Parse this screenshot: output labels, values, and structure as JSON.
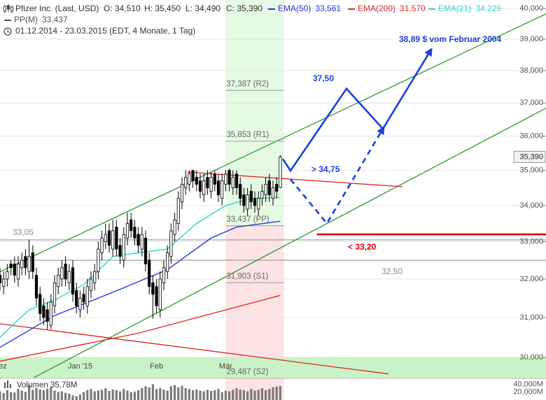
{
  "chart_data": {
    "type": "candlestick",
    "title": "Pfizer Inc. (Last, USD)",
    "ohlc_labels": [
      "O: 34,510",
      "H: 35,450",
      "L: 34,490",
      "C: 35,390"
    ],
    "subtitle": "01.12.2014 - 23.03.2015 (EDT, 4 Monate, 1 Tag)",
    "log_scale": true,
    "grid": true,
    "xlim": [
      0,
      150
    ],
    "xticks": [
      {
        "value": 0,
        "label": "Dez"
      },
      {
        "value": 22,
        "label": "Jan '15"
      },
      {
        "value": 43,
        "label": "Feb"
      },
      {
        "value": 62,
        "label": "Mär"
      }
    ],
    "ylim": [
      29.5,
      40.28
    ],
    "yticks": [
      {
        "value": 30,
        "label": "30,000"
      },
      {
        "value": 31,
        "label": "31,000"
      },
      {
        "value": 32,
        "label": "32,000"
      },
      {
        "value": 33,
        "label": "33,000"
      },
      {
        "value": 34,
        "label": "34,000"
      },
      {
        "value": 35,
        "label": "35,000"
      },
      {
        "value": 36,
        "label": "36,000"
      },
      {
        "value": 37,
        "label": "37,000"
      },
      {
        "value": 38,
        "label": "38,000"
      },
      {
        "value": 39,
        "label": "39,000"
      },
      {
        "value": 40,
        "label": "40,000"
      }
    ],
    "x": [
      0,
      1,
      2,
      3,
      4,
      5,
      6,
      7,
      8,
      9,
      10,
      11,
      12,
      13,
      14,
      15,
      16,
      17,
      18,
      19,
      20,
      21,
      22,
      23,
      24,
      25,
      26,
      27,
      28,
      29,
      30,
      31,
      32,
      33,
      34,
      35,
      36,
      37,
      38,
      39,
      40,
      41,
      42,
      43,
      44,
      45,
      46,
      47,
      48,
      49,
      50,
      51,
      52,
      53,
      54,
      55,
      56,
      57,
      58,
      59,
      60,
      61,
      62,
      63,
      64,
      65,
      66,
      67,
      68,
      69,
      70,
      71,
      72,
      73,
      74,
      75,
      76,
      77
    ],
    "open": [
      32.1,
      31.8,
      32.0,
      32.4,
      32.4,
      32.0,
      32.3,
      32.6,
      32.2,
      32.7,
      32.1,
      31.6,
      31.3,
      31.2,
      30.8,
      31.3,
      31.8,
      32.0,
      32.4,
      31.9,
      32.3,
      31.7,
      31.2,
      31.6,
      31.3,
      31.7,
      31.9,
      32.2,
      32.7,
      33.0,
      33.3,
      32.8,
      33.4,
      32.9,
      32.5,
      33.1,
      33.6,
      33.4,
      33.2,
      32.8,
      33.1,
      32.5,
      31.9,
      31.8,
      31.2,
      31.9,
      32.2,
      32.6,
      33.2,
      33.5,
      34.1,
      34.5,
      34.6,
      35.0,
      34.8,
      34.7,
      34.3,
      34.8,
      34.4,
      34.9,
      34.7,
      34.2,
      34.6,
      35.0,
      34.5,
      34.9,
      34.6,
      34.3,
      33.9,
      34.4,
      34.2,
      33.9,
      34.2,
      34.3,
      34.7,
      34.2,
      34.6,
      34.51
    ],
    "high": [
      32.3,
      32.2,
      32.4,
      32.5,
      32.6,
      32.6,
      32.7,
      32.8,
      33.05,
      32.9,
      32.3,
      31.8,
      31.5,
      31.4,
      31.6,
      32.1,
      32.3,
      32.5,
      32.6,
      32.4,
      32.5,
      31.9,
      31.7,
      31.8,
      32.0,
      32.2,
      32.4,
      33.0,
      33.3,
      33.5,
      33.5,
      33.6,
      33.6,
      33.1,
      33.4,
      33.8,
      33.8,
      33.6,
      33.4,
      33.4,
      33.3,
      32.7,
      32.1,
      32.0,
      32.2,
      32.5,
      32.9,
      33.5,
      33.8,
      34.4,
      34.8,
      35.0,
      35.0,
      35.0,
      35.0,
      34.9,
      34.9,
      35.0,
      34.95,
      35.0,
      34.9,
      34.9,
      35.0,
      35.05,
      35.0,
      35.0,
      34.8,
      34.5,
      34.5,
      34.6,
      34.4,
      34.4,
      34.6,
      34.8,
      34.9,
      34.7,
      34.8,
      35.45
    ],
    "low": [
      31.7,
      31.6,
      31.8,
      32.1,
      31.9,
      31.8,
      32.1,
      32.1,
      32.0,
      32.0,
      31.3,
      30.9,
      30.8,
      30.7,
      30.7,
      31.1,
      31.6,
      31.8,
      31.8,
      31.7,
      31.4,
      31.1,
      31.0,
      31.2,
      31.1,
      31.5,
      31.7,
      32.0,
      32.5,
      32.8,
      32.7,
      32.6,
      32.6,
      32.4,
      32.3,
      32.9,
      33.1,
      32.9,
      32.7,
      32.6,
      32.2,
      31.6,
      30.97,
      31.1,
      31.0,
      31.7,
      32.0,
      32.4,
      33.0,
      33.3,
      33.9,
      34.3,
      34.4,
      34.5,
      34.4,
      34.2,
      34.1,
      34.3,
      34.2,
      34.4,
      34.1,
      34.0,
      34.4,
      34.4,
      34.3,
      34.3,
      34.0,
      33.8,
      33.7,
      33.9,
      33.8,
      33.7,
      34.0,
      34.1,
      34.1,
      34.0,
      34.2,
      34.49
    ],
    "close": [
      31.9,
      32.0,
      32.2,
      32.3,
      32.1,
      32.4,
      32.5,
      32.3,
      32.6,
      32.2,
      31.5,
      31.1,
      31.0,
      30.9,
      31.4,
      31.9,
      32.1,
      32.3,
      32.0,
      32.2,
      31.6,
      31.3,
      31.5,
      31.4,
      31.8,
      32.0,
      32.2,
      32.8,
      33.1,
      33.2,
      32.9,
      33.3,
      32.8,
      32.6,
      33.2,
      33.5,
      33.3,
      33.1,
      32.9,
      33.2,
      32.4,
      31.8,
      31.6,
      31.3,
      32.0,
      32.3,
      32.7,
      33.3,
      33.6,
      34.2,
      34.6,
      34.8,
      34.9,
      34.7,
      34.6,
      34.4,
      34.7,
      34.5,
      34.8,
      34.6,
      34.3,
      34.7,
      34.9,
      34.6,
      34.8,
      34.5,
      34.2,
      34.0,
      34.3,
      34.1,
      34.0,
      34.2,
      34.4,
      34.6,
      34.3,
      34.5,
      34.4,
      35.39
    ],
    "up_color": "#ffffff",
    "down_color": "#000000",
    "last_label": "35,390",
    "series": [
      {
        "name": "EMA(50)",
        "color": "#2438d8",
        "last": "33,561",
        "x": [
          0,
          15,
          31,
          46,
          58,
          65,
          77
        ],
        "values": [
          30.25,
          31.05,
          31.65,
          32.25,
          33.1,
          33.4,
          33.561
        ]
      },
      {
        "name": "EMA(200)",
        "color": "#e02828",
        "last": "31,570",
        "x": [
          0,
          38,
          77
        ],
        "values": [
          29.9,
          30.6,
          31.57
        ]
      },
      {
        "name": "EMA(21)",
        "color": "#2fd8c8",
        "last": "34,225",
        "x": [
          0,
          8,
          15,
          23,
          31,
          38,
          46,
          54,
          62,
          69,
          77
        ],
        "values": [
          30.5,
          31.2,
          31.45,
          31.85,
          32.6,
          32.7,
          32.8,
          33.5,
          34.0,
          34.2,
          34.225
        ]
      }
    ],
    "pivot": {
      "name": "PP(M)",
      "last": "33,437",
      "color": "#9a9a9a",
      "x": [
        62,
        78
      ],
      "levels": [
        {
          "label": "37,387 (R2)",
          "value": 37.387
        },
        {
          "label": "35,853 (R1)",
          "value": 35.853
        },
        {
          "label": "33,437 (PP)",
          "value": 33.437
        },
        {
          "label": "31,903 (S1)",
          "value": 31.903
        },
        {
          "label": "29,487 (S2)",
          "value": 29.487
        }
      ]
    },
    "hlines": [
      {
        "value": 33.05,
        "label": "33,05",
        "color": "#8c8c8c",
        "x": [
          0,
          150
        ]
      },
      {
        "value": 32.5,
        "label": "32,50",
        "color": "#8c8c8c",
        "x": [
          0,
          150
        ]
      },
      {
        "value": 33.2,
        "label": "< 33,20",
        "color": "#e00000",
        "x": [
          87,
          150
        ]
      }
    ],
    "trendlines": [
      {
        "color": "#2e9a2e",
        "x": [
          0,
          150
        ],
        "values": [
          32.19,
          39.82
        ]
      },
      {
        "color": "#2e9a2e",
        "x": [
          0,
          150
        ],
        "values": [
          29.07,
          36.84
        ]
      },
      {
        "color": "#e02020",
        "x": [
          0,
          106.7
        ],
        "values": [
          30.84,
          29.59
        ]
      },
      {
        "color": "#e02020",
        "x": [
          51.5,
          110.6
        ],
        "values": [
          34.95,
          34.53
        ]
      }
    ],
    "projections": [
      {
        "style": "solid",
        "arrow": false,
        "x": [
          77.7,
          79.8,
          95.2,
          105.2
        ],
        "values": [
          35.33,
          34.99,
          37.44,
          36.22
        ]
      },
      {
        "style": "dashed",
        "arrow": true,
        "x": [
          79.8,
          89.8,
          105.2
        ],
        "values": [
          34.74,
          33.5,
          36.22
        ]
      },
      {
        "style": "solid",
        "arrow": true,
        "x": [
          105.2,
          118.3
        ],
        "values": [
          36.22,
          38.64
        ]
      }
    ],
    "annotations": [
      "37,50",
      "> 34,75",
      "38,89 $ vom Februar 2004"
    ],
    "volume": {
      "label": "Volumen 35,78M",
      "color": "#7a7a7a",
      "values": [
        22,
        18,
        25,
        20,
        19,
        28,
        24,
        21,
        38,
        26,
        30,
        27,
        25,
        29,
        33,
        24,
        20,
        22,
        18,
        16,
        12,
        10,
        14,
        20,
        25,
        28,
        22,
        24,
        26,
        30,
        23,
        27,
        25,
        22,
        28,
        24,
        20,
        21,
        25,
        30,
        35,
        32,
        40,
        28,
        30,
        26,
        24,
        35,
        38,
        32,
        36,
        30,
        28,
        25,
        27,
        24,
        22,
        26,
        23,
        25,
        28,
        20,
        24,
        22,
        26,
        30,
        27,
        25,
        22,
        28,
        24,
        26,
        30,
        25,
        28,
        32,
        34,
        35.78
      ],
      "ylim": [
        0,
        55
      ],
      "yticks": [
        {
          "value": 20,
          "label": "20,000M"
        },
        {
          "value": 40,
          "label": "40,000M"
        }
      ]
    }
  }
}
